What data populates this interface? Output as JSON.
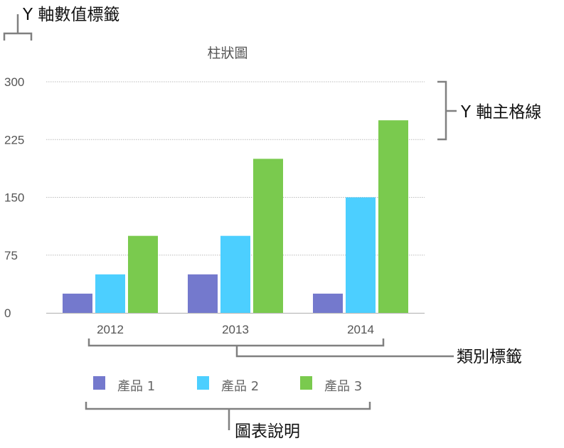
{
  "chart_data": {
    "type": "bar",
    "title": "柱狀圖",
    "categories": [
      "2012",
      "2013",
      "2014"
    ],
    "series": [
      {
        "name": "產品 1",
        "values": [
          25,
          50,
          25
        ],
        "color": "#7479cd"
      },
      {
        "name": "產品 2",
        "values": [
          50,
          100,
          150
        ],
        "color": "#4ccfff"
      },
      {
        "name": "產品 3",
        "values": [
          100,
          200,
          250
        ],
        "color": "#7aca4e"
      }
    ],
    "ylim": [
      0,
      300
    ],
    "yticks": [
      "0",
      "75",
      "150",
      "225",
      "300"
    ],
    "grid": true,
    "legend_placement": "bottom"
  },
  "annotations": {
    "y_value_labels": "Y 軸數值標籤",
    "y_major_gridlines": "Y 軸主格線",
    "category_labels": "類別標籤",
    "legend": "圖表說明"
  }
}
